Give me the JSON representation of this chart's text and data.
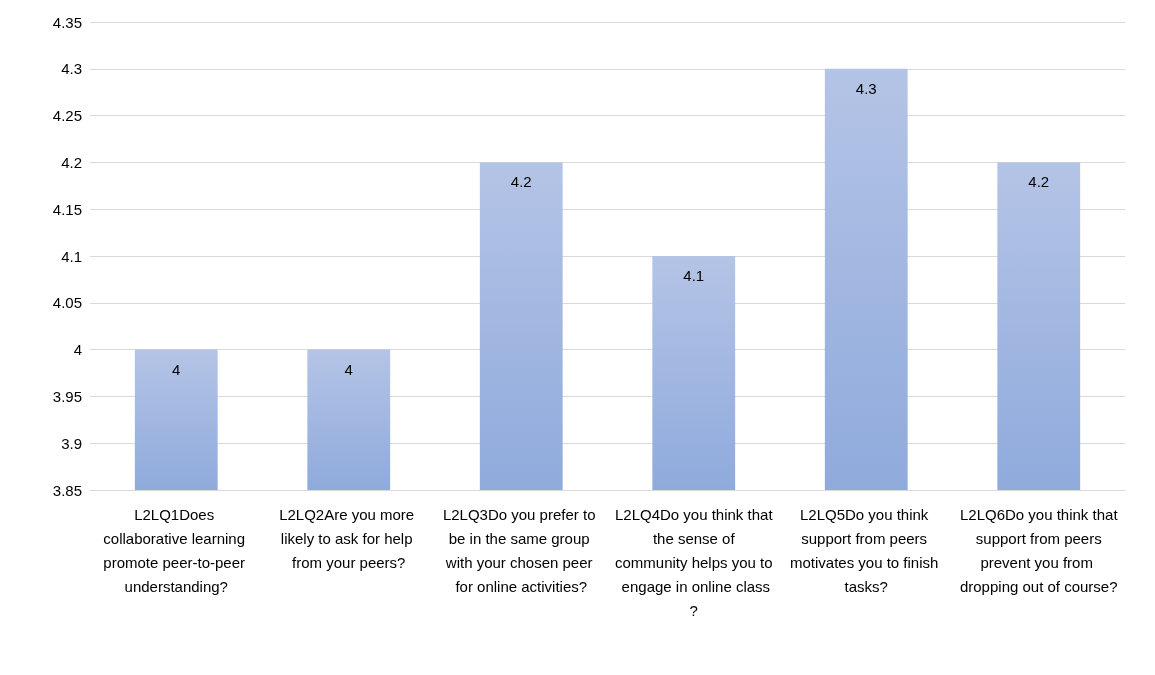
{
  "chart_data": {
    "type": "bar",
    "categories": [
      "L2LQ1Does collaborative learning promote peer-to-peer understanding?",
      "L2LQ2Are you more likely to ask for help from your peers?",
      "L2LQ3Do you prefer to be in the same group with your chosen peer for online activities?",
      "L2LQ4Do you think that the sense of community helps you to engage in online class?",
      "L2LQ5Do you think support from peers motivates you to finish tasks?",
      "L2LQ6Do you think that support from peers prevent you from dropping out of course?"
    ],
    "values": [
      4,
      4,
      4.2,
      4.1,
      4.3,
      4.2
    ],
    "color": "#8faadc",
    "ylim": [
      3.85,
      4.35
    ],
    "yticks": [
      3.85,
      3.9,
      3.95,
      4,
      4.05,
      4.1,
      4.15,
      4.2,
      4.25,
      4.3,
      4.35
    ],
    "grid": "y",
    "data_labels": true
  }
}
